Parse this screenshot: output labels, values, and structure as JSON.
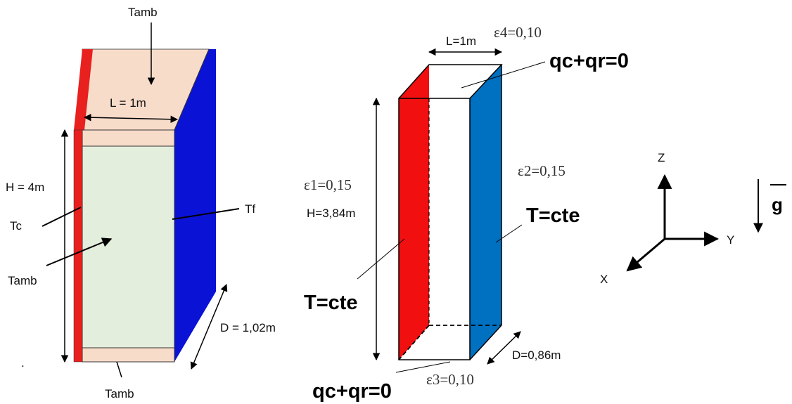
{
  "left_box": {
    "top_label": "Tamb",
    "width_label": "L = 1m",
    "height_label": "H = 4m",
    "hot_label": "Tc",
    "inner_label": "Tamb",
    "cold_label": "Tf",
    "depth_label": "D = 1,02m",
    "bottom_label": "Tamb",
    "colors": {
      "hot": "#e8201e",
      "cold": "#0a12d6",
      "top": "#f8dcca",
      "inner": "#e4eedc"
    }
  },
  "middle_box": {
    "width_label": "L=1m",
    "eps_top": "ε4=0,10",
    "top_bc": "qc+qr=0",
    "eps_left": "ε1=0,15",
    "height_label": "H=3,84m",
    "left_bc": "T=cte",
    "eps_right": "ε2=0,15",
    "right_bc": "T=cte",
    "depth_label": "D=0,86m",
    "eps_bottom": "ε3=0,10",
    "bottom_bc": "qc+qr=0",
    "colors": {
      "hot": "#f20f0f",
      "cold": "#0070c0"
    }
  },
  "axes": {
    "z": "Z",
    "y": "Y",
    "x": "X",
    "gravity": "g"
  },
  "stray_mark": "."
}
